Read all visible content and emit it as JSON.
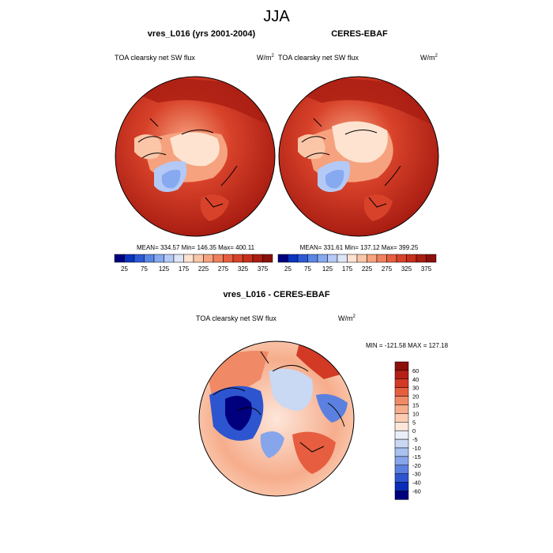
{
  "title": "JJA",
  "chart_data": [
    {
      "type": "heatmap",
      "projection": "north polar stereographic",
      "title": "vres_L016 (yrs 2001-2004)",
      "field_label": "TOA clearsky net SW flux",
      "units": "W/m",
      "units_sup": "2",
      "stats": "MEAN= 334.57  Min= 146.35  Max= 400.11",
      "colorbar_ticks": [
        "25",
        "75",
        "125",
        "175",
        "225",
        "275",
        "325",
        "375"
      ],
      "levels": [
        0,
        25,
        50,
        75,
        100,
        125,
        150,
        175,
        200,
        225,
        250,
        275,
        300,
        325,
        350,
        375,
        400
      ],
      "colors": [
        "#00007f",
        "#0a33bf",
        "#2c5ad6",
        "#5a86e6",
        "#86a9f0",
        "#b4c9f5",
        "#dde6f7",
        "#fde3d0",
        "#fbc6a8",
        "#f6a27e",
        "#f0805c",
        "#e65e3f",
        "#d8422a",
        "#c5301c",
        "#a91d12",
        "#8a100c"
      ]
    },
    {
      "type": "heatmap",
      "projection": "north polar stereographic",
      "title": "CERES-EBAF",
      "field_label": "TOA clearsky net SW flux",
      "units": "W/m",
      "units_sup": "2",
      "stats": "MEAN= 331.61  Min= 137.12  Max= 399.25",
      "colorbar_ticks": [
        "25",
        "75",
        "125",
        "175",
        "225",
        "275",
        "325",
        "375"
      ],
      "levels": [
        0,
        25,
        50,
        75,
        100,
        125,
        150,
        175,
        200,
        225,
        250,
        275,
        300,
        325,
        350,
        375,
        400
      ]
    },
    {
      "type": "heatmap",
      "projection": "north polar stereographic",
      "title": "vres_L016 - CERES-EBAF",
      "field_label": "TOA clearsky net SW flux",
      "units": "W/m",
      "units_sup": "2",
      "stats": "MIN = -121.58 MAX = 127.18",
      "colorbar_labels": [
        "60",
        "40",
        "30",
        "20",
        "15",
        "10",
        "5",
        "0",
        "-5",
        "-10",
        "-15",
        "-20",
        "-30",
        "-40",
        "-60"
      ],
      "colors": [
        "#8a100c",
        "#b51f15",
        "#d23a26",
        "#e65e3f",
        "#f08a66",
        "#f6ad8c",
        "#fbcbb2",
        "#fde6da",
        "#e9eef8",
        "#c9d8f3",
        "#a9c1ef",
        "#86a5eb",
        "#5b80e0",
        "#2e55d0",
        "#0a2cb8",
        "#00007f"
      ]
    }
  ]
}
